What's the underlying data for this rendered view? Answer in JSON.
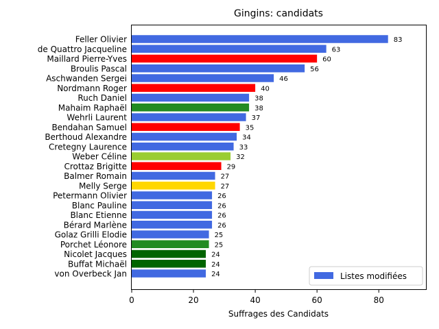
{
  "chart_data": {
    "type": "bar",
    "orientation": "horizontal",
    "title": "Gingins: candidats",
    "xlabel": "Suffrages des Candidats",
    "ylabel": "",
    "xlim": [
      0,
      95.5
    ],
    "xticks": [
      0,
      20,
      40,
      60,
      80
    ],
    "grid": false,
    "legend": {
      "position": "lower-right",
      "entries": [
        {
          "label": "Listes modifiées",
          "color": "#4169e1"
        }
      ]
    },
    "categories": [
      "Feller Olivier",
      "de Quattro Jacqueline",
      "Maillard Pierre-Yves",
      "Broulis Pascal",
      "Aschwanden Sergei",
      "Nordmann Roger",
      "Ruch Daniel",
      "Mahaim Raphaël",
      "Wehrli Laurent",
      "Bendahan Samuel",
      "Berthoud Alexandre",
      "Cretegny Laurence",
      "Weber Céline",
      "Crottaz Brigitte",
      "Balmer Romain",
      "Melly Serge",
      "Petermann Olivier",
      "Blanc Pauline",
      "Blanc Etienne",
      "Bérard Marlène",
      "Golaz Grilli Elodie",
      "Porchet Léonore",
      "Nicolet Jacques",
      "Buffat Michaël",
      "von Overbeck Jan"
    ],
    "values": [
      83,
      63,
      60,
      56,
      46,
      40,
      38,
      38,
      37,
      35,
      34,
      33,
      32,
      29,
      27,
      27,
      26,
      26,
      26,
      26,
      25,
      25,
      24,
      24,
      24
    ],
    "colors": [
      "#4169e1",
      "#4169e1",
      "#ff0000",
      "#4169e1",
      "#4169e1",
      "#ff0000",
      "#4169e1",
      "#228b22",
      "#4169e1",
      "#ff0000",
      "#4169e1",
      "#4169e1",
      "#9acd32",
      "#ff0000",
      "#4169e1",
      "#ffd700",
      "#4169e1",
      "#4169e1",
      "#4169e1",
      "#4169e1",
      "#4169e1",
      "#228b22",
      "#006400",
      "#006400",
      "#4169e1"
    ]
  }
}
